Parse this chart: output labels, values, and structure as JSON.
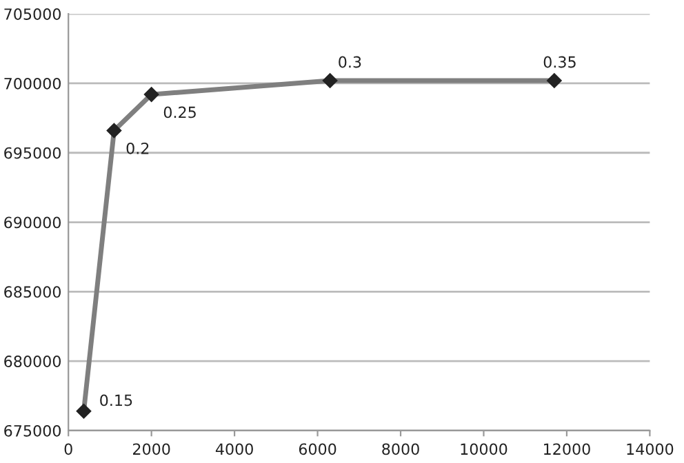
{
  "chart_data": {
    "type": "line",
    "x": [
      370,
      1100,
      2000,
      6300,
      11700
    ],
    "series": [
      {
        "color": "#7f7f7f",
        "values": [
          676400,
          696600,
          699200,
          700200,
          700200
        ]
      }
    ],
    "marker": "diamond",
    "line_style": "solid",
    "grid": "y",
    "legend": false,
    "xlim": [
      0,
      14000
    ],
    "xticks": [
      0,
      2000,
      4000,
      6000,
      8000,
      10000,
      12000,
      14000
    ],
    "ylim": [
      675000,
      705000
    ],
    "yticks": [
      675000,
      680000,
      685000,
      690000,
      695000,
      700000,
      705000
    ],
    "annotations": [
      {
        "text": "0.15",
        "x": 370,
        "y": 676400
      },
      {
        "text": "0.2",
        "x": 1100,
        "y": 696600
      },
      {
        "text": "0.25",
        "x": 2000,
        "y": 699200
      },
      {
        "text": "0.3",
        "x": 6300,
        "y": 700200
      },
      {
        "text": "0.35",
        "x": 11700,
        "y": 700200
      }
    ]
  }
}
